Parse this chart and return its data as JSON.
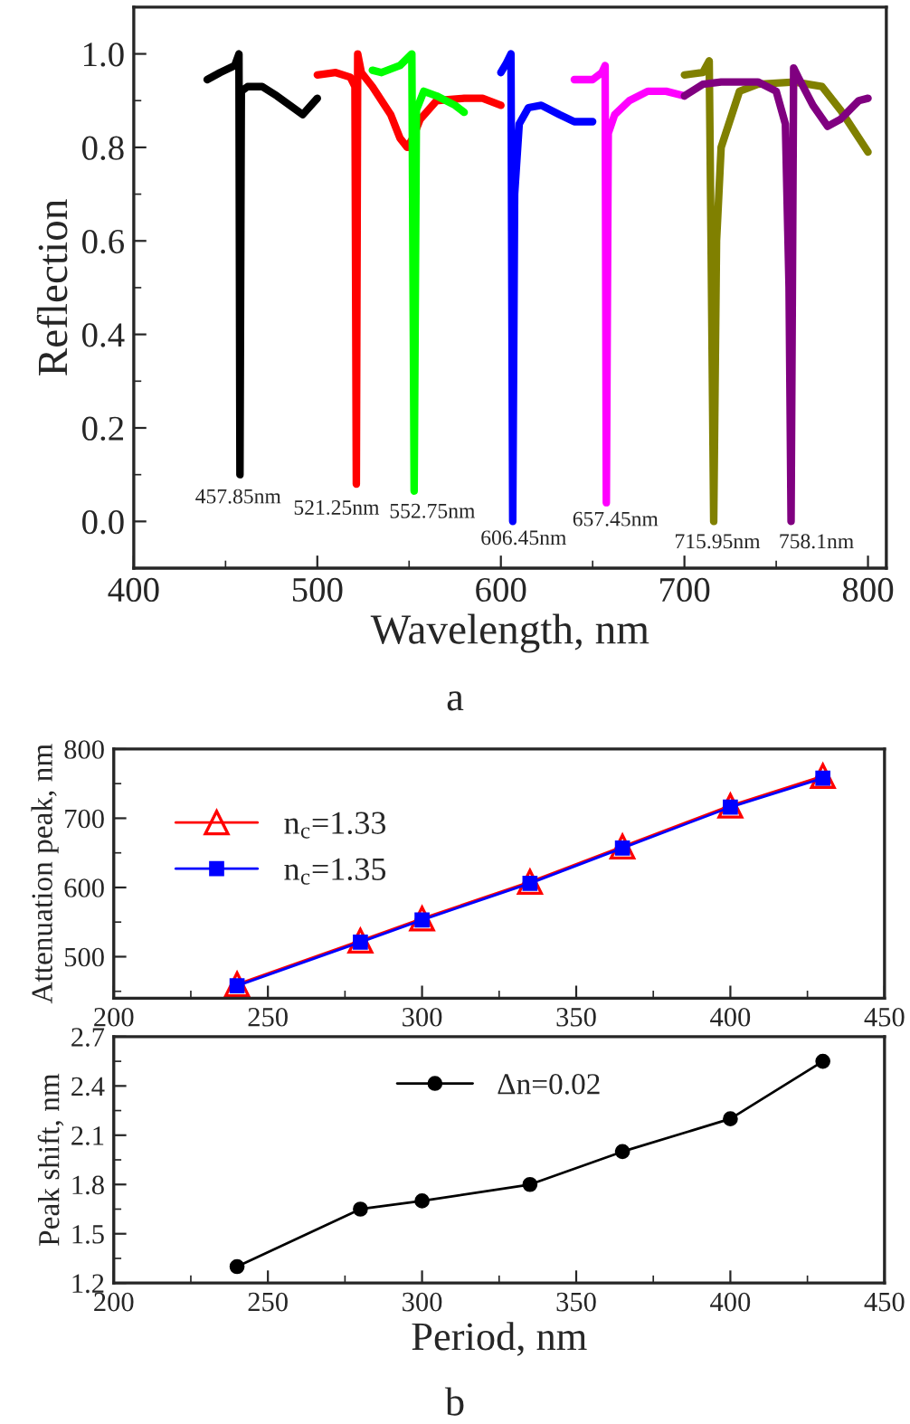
{
  "chart_data": [
    {
      "type": "line",
      "xlabel": "Wavelength, nm",
      "ylabel": "Reflection",
      "xlim": [
        400,
        810
      ],
      "ylim": [
        -0.1,
        1.1
      ],
      "xticks": [
        400,
        {
          "value": 450,
          "label": null
        },
        500,
        {
          "value": 550,
          "label": null
        },
        600,
        {
          "value": 650,
          "label": null
        },
        700,
        {
          "value": 750,
          "label": null
        },
        800
      ],
      "yticks": [
        {
          "value": 0,
          "label": "0.0"
        },
        {
          "value": 0.1,
          "label": null
        },
        0.2,
        {
          "value": 0.3,
          "label": null
        },
        0.4,
        {
          "value": 0.5,
          "label": null
        },
        0.6,
        {
          "value": 0.7,
          "label": null
        },
        0.8,
        {
          "value": 0.9,
          "label": null
        },
        {
          "value": 1,
          "label": "1.0"
        }
      ],
      "series": [
        {
          "color": "#000000",
          "x": [
            440,
            447,
            455,
            457.3,
            457.85,
            458.6,
            462,
            470,
            478,
            485,
            492,
            500
          ],
          "values": [
            0.945,
            0.96,
            0.975,
            1.0,
            0.1,
            0.92,
            0.93,
            0.93,
            0.91,
            0.89,
            0.87,
            0.905
          ]
        },
        {
          "color": "#ff0000",
          "x": [
            500,
            510,
            518,
            520.5,
            521.25,
            522,
            524,
            530,
            540,
            545,
            549,
            552,
            556,
            565,
            580,
            590,
            600
          ],
          "values": [
            0.955,
            0.96,
            0.95,
            0.93,
            0.08,
            1.0,
            0.96,
            0.93,
            0.87,
            0.82,
            0.8,
            0.82,
            0.86,
            0.9,
            0.905,
            0.905,
            0.89
          ]
        },
        {
          "color": "#00ff00",
          "x": [
            530,
            535,
            545,
            551.5,
            552.75,
            554,
            558,
            565,
            575,
            580
          ],
          "values": [
            0.965,
            0.96,
            0.975,
            1.0,
            0.065,
            0.88,
            0.92,
            0.91,
            0.89,
            0.875
          ]
        },
        {
          "color": "#0000ff",
          "x": [
            600,
            603,
            605.5,
            606.45,
            607.5,
            610,
            615,
            622,
            632,
            640,
            650
          ],
          "values": [
            0.96,
            0.98,
            1.0,
            0.0,
            0.7,
            0.85,
            0.885,
            0.89,
            0.87,
            0.855,
            0.855
          ]
        },
        {
          "color": "#ff00ff",
          "x": [
            640,
            650,
            655,
            656.8,
            657.45,
            658.5,
            662,
            670,
            680,
            690,
            700
          ],
          "values": [
            0.945,
            0.945,
            0.96,
            0.975,
            0.04,
            0.83,
            0.87,
            0.9,
            0.92,
            0.92,
            0.91
          ]
        },
        {
          "color": "#808000",
          "x": [
            700,
            710,
            713.5,
            714.5,
            715.95,
            717.5,
            720,
            730,
            740,
            760,
            775,
            785,
            795,
            800
          ],
          "values": [
            0.955,
            0.96,
            0.985,
            0.6,
            0.0,
            0.6,
            0.8,
            0.92,
            0.935,
            0.94,
            0.93,
            0.88,
            0.82,
            0.79
          ]
        },
        {
          "color": "#800080",
          "x": [
            700,
            710,
            720,
            740,
            750,
            755,
            757,
            758.1,
            759.5,
            762,
            770,
            778,
            785,
            795,
            800
          ],
          "values": [
            0.91,
            0.935,
            0.94,
            0.94,
            0.92,
            0.85,
            0.5,
            0.0,
            0.97,
            0.95,
            0.89,
            0.845,
            0.86,
            0.9,
            0.905
          ]
        }
      ],
      "annotations": [
        {
          "text": "457.85nm",
          "x": 457.85,
          "y": 0.1
        },
        {
          "text": "521.25nm",
          "x": 521.25,
          "y": 0.08
        },
        {
          "text": "552.75nm",
          "x": 552.75,
          "y": 0.065
        },
        {
          "text": "606.45nm",
          "x": 606.45,
          "y": 0.0
        },
        {
          "text": "657.45nm",
          "x": 657.45,
          "y": 0.04
        },
        {
          "text": "715.95nm",
          "x": 715.95,
          "y": 0.0
        },
        {
          "text": "758.1nm",
          "x": 758.1,
          "y": 0.0
        },
        "a"
      ]
    },
    {
      "type": "line",
      "ylabel": "Attenuation peak, nm",
      "xlim": [
        200,
        450
      ],
      "ylim": [
        440,
        800
      ],
      "legend": "top left",
      "xticks": [
        200,
        {
          "value": 225,
          "label": null
        },
        250,
        {
          "value": 275,
          "label": null
        },
        300,
        {
          "value": 325,
          "label": null
        },
        350,
        {
          "value": 375,
          "label": null
        },
        400,
        {
          "value": 425,
          "label": null
        },
        450
      ],
      "yticks": [
        {
          "value": 450,
          "label": null
        },
        500,
        {
          "value": 550,
          "label": null
        },
        600,
        {
          "value": 650,
          "label": null
        },
        700,
        {
          "value": 750,
          "label": null
        },
        800
      ],
      "series": [
        {
          "name": "n$_{c}$=1.33",
          "color": "#ff0000",
          "marker": "triangle",
          "x": [
            240,
            280,
            300,
            335,
            365,
            400,
            430
          ],
          "values": [
            460,
            523,
            555,
            608,
            659,
            718,
            761
          ]
        },
        {
          "name": "n$_{c}$=1.35",
          "color": "#0000ff",
          "marker": "square",
          "x": [
            240,
            280,
            300,
            335,
            365,
            400,
            430
          ],
          "values": [
            458,
            521,
            553,
            606,
            657,
            716,
            758
          ]
        }
      ]
    },
    {
      "type": "line",
      "xlabel": "Period, nm",
      "ylabel": "Peak shift, nm",
      "xlim": [
        200,
        450
      ],
      "ylim": [
        1.2,
        2.7
      ],
      "legend": "top",
      "xticks": [
        200,
        {
          "value": 225,
          "label": null
        },
        250,
        {
          "value": 275,
          "label": null
        },
        300,
        {
          "value": 325,
          "label": null
        },
        350,
        {
          "value": 375,
          "label": null
        },
        400,
        {
          "value": 425,
          "label": null
        },
        450
      ],
      "yticks": [
        1.2,
        {
          "value": 1.35,
          "label": null
        },
        1.5,
        {
          "value": 1.65,
          "label": null
        },
        1.8,
        {
          "value": 1.95,
          "label": null
        },
        2.1,
        {
          "value": 2.25,
          "label": null
        },
        2.4,
        {
          "value": 2.55,
          "label": null
        },
        2.7
      ],
      "series": [
        {
          "name": "Δn=0.02",
          "color": "#000000",
          "marker": "circle",
          "x": [
            240,
            280,
            300,
            335,
            365,
            400,
            430
          ],
          "values": [
            1.3,
            1.65,
            1.7,
            1.8,
            2.0,
            2.2,
            2.55
          ]
        }
      ],
      "annotations": [
        "b"
      ]
    }
  ]
}
